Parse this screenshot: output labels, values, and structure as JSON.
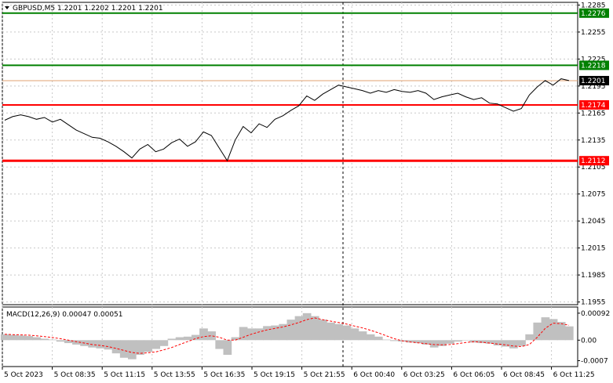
{
  "chart_data": {
    "type": "line",
    "symbol_header": "GBPUSD,M5  1.2201 1.2202 1.2201 1.2201",
    "current_price": 1.2201,
    "current_price_label": "1.2201",
    "ylim": [
      1.1952,
      1.2288
    ],
    "y_ticks": [
      "1.2285",
      "1.2255",
      "1.2225",
      "1.2195",
      "1.2165",
      "1.2135",
      "1.2105",
      "1.2075",
      "1.2045",
      "1.2015",
      "1.1985",
      "1.1955"
    ],
    "x_labels": [
      "5 Oct 2023",
      "5 Oct 08:35",
      "5 Oct 11:15",
      "5 Oct 13:55",
      "5 Oct 16:35",
      "5 Oct 19:15",
      "5 Oct 21:55",
      "6 Oct 00:40",
      "6 Oct 03:25",
      "6 Oct 06:05",
      "6 Oct 08:45",
      "6 Oct 11:25"
    ],
    "grid": true,
    "levels": [
      {
        "value": 1.2276,
        "label": "1.2276",
        "color": "#008000"
      },
      {
        "value": 1.2218,
        "label": "1.2218",
        "color": "#008000"
      },
      {
        "value": 1.2174,
        "label": "1.2174",
        "color": "#ff0000"
      },
      {
        "value": 1.2112,
        "label": "1.2112",
        "color": "#ff0000"
      }
    ],
    "price_series": [
      {
        "x": 0,
        "y": 1.2157
      },
      {
        "x": 1,
        "y": 1.2161
      },
      {
        "x": 2,
        "y": 1.2163
      },
      {
        "x": 3,
        "y": 1.2161
      },
      {
        "x": 4,
        "y": 1.2158
      },
      {
        "x": 5,
        "y": 1.216
      },
      {
        "x": 6,
        "y": 1.2155
      },
      {
        "x": 7,
        "y": 1.2158
      },
      {
        "x": 8,
        "y": 1.2152
      },
      {
        "x": 9,
        "y": 1.2146
      },
      {
        "x": 10,
        "y": 1.2142
      },
      {
        "x": 11,
        "y": 1.2138
      },
      {
        "x": 12,
        "y": 1.2137
      },
      {
        "x": 13,
        "y": 1.2133
      },
      {
        "x": 14,
        "y": 1.2128
      },
      {
        "x": 15,
        "y": 1.2122
      },
      {
        "x": 16,
        "y": 1.2115
      },
      {
        "x": 17,
        "y": 1.2125
      },
      {
        "x": 18,
        "y": 1.213
      },
      {
        "x": 19,
        "y": 1.2122
      },
      {
        "x": 20,
        "y": 1.2125
      },
      {
        "x": 21,
        "y": 1.2132
      },
      {
        "x": 22,
        "y": 1.2136
      },
      {
        "x": 23,
        "y": 1.2128
      },
      {
        "x": 24,
        "y": 1.2133
      },
      {
        "x": 25,
        "y": 1.2144
      },
      {
        "x": 26,
        "y": 1.214
      },
      {
        "x": 27,
        "y": 1.2126
      },
      {
        "x": 28,
        "y": 1.2112
      },
      {
        "x": 29,
        "y": 1.2135
      },
      {
        "x": 30,
        "y": 1.215
      },
      {
        "x": 31,
        "y": 1.2143
      },
      {
        "x": 32,
        "y": 1.2153
      },
      {
        "x": 33,
        "y": 1.2149
      },
      {
        "x": 34,
        "y": 1.2158
      },
      {
        "x": 35,
        "y": 1.2162
      },
      {
        "x": 36,
        "y": 1.2168
      },
      {
        "x": 37,
        "y": 1.2173
      },
      {
        "x": 38,
        "y": 1.2184
      },
      {
        "x": 39,
        "y": 1.2179
      },
      {
        "x": 40,
        "y": 1.2186
      },
      {
        "x": 41,
        "y": 1.2191
      },
      {
        "x": 42,
        "y": 1.2196
      },
      {
        "x": 43,
        "y": 1.2194
      },
      {
        "x": 44,
        "y": 1.2192
      },
      {
        "x": 45,
        "y": 1.219
      },
      {
        "x": 46,
        "y": 1.2187
      },
      {
        "x": 47,
        "y": 1.219
      },
      {
        "x": 48,
        "y": 1.2188
      },
      {
        "x": 49,
        "y": 1.2191
      },
      {
        "x": 50,
        "y": 1.2189
      },
      {
        "x": 51,
        "y": 1.2188
      },
      {
        "x": 52,
        "y": 1.219
      },
      {
        "x": 53,
        "y": 1.2187
      },
      {
        "x": 54,
        "y": 1.218
      },
      {
        "x": 55,
        "y": 1.2183
      },
      {
        "x": 56,
        "y": 1.2185
      },
      {
        "x": 57,
        "y": 1.2187
      },
      {
        "x": 58,
        "y": 1.2183
      },
      {
        "x": 59,
        "y": 1.218
      },
      {
        "x": 60,
        "y": 1.2182
      },
      {
        "x": 61,
        "y": 1.2176
      },
      {
        "x": 62,
        "y": 1.2175
      },
      {
        "x": 63,
        "y": 1.2171
      },
      {
        "x": 64,
        "y": 1.2167
      },
      {
        "x": 65,
        "y": 1.217
      },
      {
        "x": 66,
        "y": 1.2185
      },
      {
        "x": 67,
        "y": 1.2194
      },
      {
        "x": 68,
        "y": 1.2201
      },
      {
        "x": 69,
        "y": 1.2196
      },
      {
        "x": 70,
        "y": 1.2203
      },
      {
        "x": 71,
        "y": 1.2201
      }
    ],
    "macd": {
      "label": "MACD(12,26,9) 0.00047 0.00051",
      "ylim": [
        -0.0009,
        0.00113
      ],
      "y_ticks": [
        "0.00092",
        "0.00",
        "-0.0007"
      ],
      "histogram": [
        0.0002,
        0.00018,
        0.00016,
        0.00014,
        0.0001,
        5e-05,
        2e-05,
        -5e-05,
        -0.0001,
        -0.00015,
        -0.0002,
        -0.00025,
        -0.00028,
        -0.00032,
        -0.00045,
        -0.0006,
        -0.00065,
        -0.0005,
        -0.0004,
        -0.0003,
        -0.0002,
        5e-05,
        0.0001,
        0.00012,
        0.00018,
        0.0004,
        0.0003,
        -0.0003,
        -0.0005,
        0.0001,
        0.00045,
        0.0004,
        0.0004,
        0.00048,
        0.0005,
        0.00055,
        0.0007,
        0.00082,
        0.00092,
        0.00082,
        0.0007,
        0.0006,
        0.00055,
        0.0005,
        0.0004,
        0.0003,
        0.0002,
        0.00012,
        2e-05,
        -3e-05,
        -5e-05,
        -8e-05,
        -0.0001,
        -0.00015,
        -0.00025,
        -0.0002,
        -0.00012,
        -5e-05,
        0.0,
        -8e-05,
        -0.0001,
        -0.00012,
        -0.00018,
        -0.00022,
        -0.00028,
        -0.0002,
        0.0002,
        0.0006,
        0.00078,
        0.00072,
        0.00062,
        0.00047
      ],
      "signal": [
        0.0002,
        0.00019,
        0.00018,
        0.00017,
        0.00015,
        0.00012,
        9e-05,
        5e-05,
        0.0,
        -5e-05,
        -0.0001,
        -0.00015,
        -0.00018,
        -0.00022,
        -0.00028,
        -0.00035,
        -0.00042,
        -0.00045,
        -0.00043,
        -0.0004,
        -0.00033,
        -0.00025,
        -0.00015,
        -5e-05,
        5e-05,
        0.00012,
        0.00015,
        0.0001,
        0.0,
        0.0,
        0.0001,
        0.0002,
        0.00028,
        0.00035,
        0.0004,
        0.00045,
        0.00052,
        0.0006,
        0.0007,
        0.00076,
        0.0007,
        0.00065,
        0.0006,
        0.00055,
        0.00048,
        0.00042,
        0.00034,
        0.00025,
        0.00015,
        5e-05,
        -2e-05,
        -6e-05,
        -9e-05,
        -0.00012,
        -0.00015,
        -0.00016,
        -0.00015,
        -0.00012,
        -8e-05,
        -5e-05,
        -7e-05,
        -0.0001,
        -0.00013,
        -0.00016,
        -0.0002,
        -0.00022,
        -0.00015,
        0.0001,
        0.0004,
        0.00058,
        0.00056,
        0.00051
      ]
    },
    "colors": {
      "price_line": "#000000",
      "histogram": "#c0c0c0",
      "signal": "#ff0000",
      "grid": "#c8c8c8",
      "current_price_bg": "#000000"
    }
  }
}
